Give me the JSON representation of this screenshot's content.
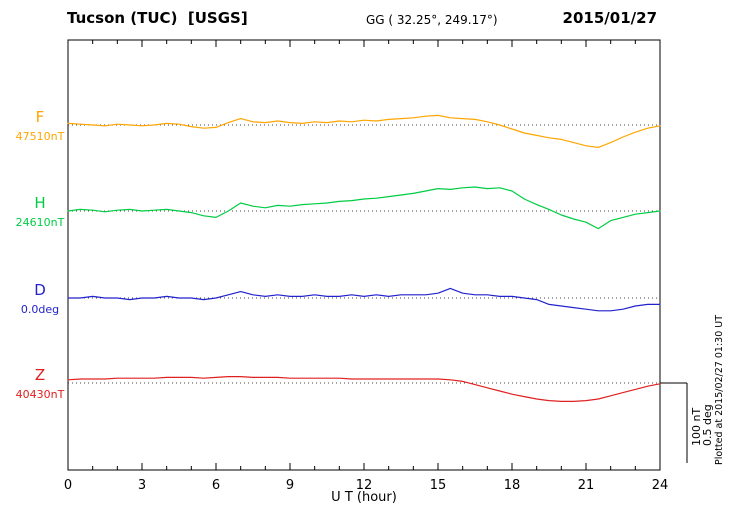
{
  "header": {
    "station": "Tucson (TUC)  [USGS]",
    "coords": "GG ( 32.25°, 249.17°)",
    "date": "2015/01/27"
  },
  "axis": {
    "xlabel": "U T (hour)",
    "xmin": 0,
    "xmax": 24,
    "xticks": [
      0,
      3,
      6,
      9,
      12,
      15,
      18,
      21,
      24
    ]
  },
  "scalebar": {
    "nt_label": "100 nT",
    "deg_label": "0.5 deg"
  },
  "plotted_at": "Plotted at 2015/02/27 01:30 UT",
  "chart_data": {
    "type": "line",
    "title": "Tucson (TUC) [USGS] magnetogram 2015/01/27",
    "xlabel": "U T (hour)",
    "xlim": [
      0,
      24
    ],
    "grid": "dotted baseline per channel",
    "legend_position": "left margin channel labels",
    "scale": {
      "nT_per_bar": 100,
      "deg_per_bar": 0.5
    },
    "x_hours": [
      0,
      0.5,
      1,
      1.5,
      2,
      2.5,
      3,
      3.5,
      4,
      4.5,
      5,
      5.5,
      6,
      6.5,
      7,
      7.5,
      8,
      8.5,
      9,
      9.5,
      10,
      10.5,
      11,
      11.5,
      12,
      12.5,
      13,
      13.5,
      14,
      14.5,
      15,
      15.5,
      16,
      16.5,
      17,
      17.5,
      18,
      18.5,
      19,
      19.5,
      20,
      20.5,
      21,
      21.5,
      22,
      22.5,
      23,
      23.5,
      24
    ],
    "series": [
      {
        "id": "F",
        "label": "F",
        "baseline_label": "47510nT",
        "baseline": 47510,
        "unit": "nT",
        "color": "#FFA500",
        "offsets": [
          2,
          1,
          0,
          -1,
          1,
          0,
          -1,
          0,
          2,
          1,
          -2,
          -4,
          -3,
          3,
          8,
          4,
          3,
          5,
          3,
          2,
          4,
          3,
          5,
          4,
          6,
          5,
          7,
          8,
          9,
          11,
          12,
          9,
          8,
          7,
          4,
          0,
          -5,
          -10,
          -13,
          -16,
          -18,
          -22,
          -26,
          -28,
          -22,
          -15,
          -9,
          -4,
          -1
        ]
      },
      {
        "id": "H",
        "label": "H",
        "baseline_label": "24610nT",
        "baseline": 24610,
        "unit": "nT",
        "color": "#00CC44",
        "offsets": [
          0,
          2,
          1,
          -1,
          1,
          2,
          0,
          1,
          2,
          0,
          -2,
          -6,
          -8,
          0,
          10,
          6,
          4,
          7,
          6,
          8,
          9,
          10,
          12,
          13,
          15,
          16,
          18,
          20,
          22,
          25,
          28,
          27,
          29,
          30,
          28,
          29,
          25,
          15,
          8,
          2,
          -5,
          -10,
          -14,
          -22,
          -12,
          -8,
          -4,
          -2,
          0
        ]
      },
      {
        "id": "D",
        "label": "D",
        "baseline_label": "0.0deg",
        "baseline": 0.0,
        "unit": "deg",
        "color": "#2222CC",
        "offsets": [
          0,
          0,
          0.01,
          0,
          0,
          -0.01,
          0,
          0,
          0.01,
          0,
          0,
          -0.01,
          0,
          0.02,
          0.04,
          0.02,
          0.01,
          0.02,
          0.01,
          0.01,
          0.02,
          0.01,
          0.01,
          0.02,
          0.01,
          0.02,
          0.01,
          0.02,
          0.02,
          0.02,
          0.03,
          0.06,
          0.03,
          0.02,
          0.02,
          0.01,
          0.01,
          0,
          -0.01,
          -0.04,
          -0.05,
          -0.06,
          -0.07,
          -0.08,
          -0.08,
          -0.07,
          -0.05,
          -0.04,
          -0.04
        ]
      },
      {
        "id": "Z",
        "label": "Z",
        "baseline_label": "40430nT",
        "baseline": 40430,
        "unit": "nT",
        "color": "#E02020",
        "offsets": [
          4,
          5,
          5,
          5,
          6,
          6,
          6,
          6,
          7,
          7,
          7,
          6,
          7,
          8,
          8,
          7,
          7,
          7,
          6,
          6,
          6,
          6,
          6,
          5,
          5,
          5,
          5,
          5,
          5,
          5,
          5,
          4,
          2,
          -2,
          -6,
          -10,
          -14,
          -17,
          -20,
          -22,
          -23,
          -23,
          -22,
          -20,
          -16,
          -12,
          -8,
          -4,
          -1
        ]
      }
    ]
  }
}
